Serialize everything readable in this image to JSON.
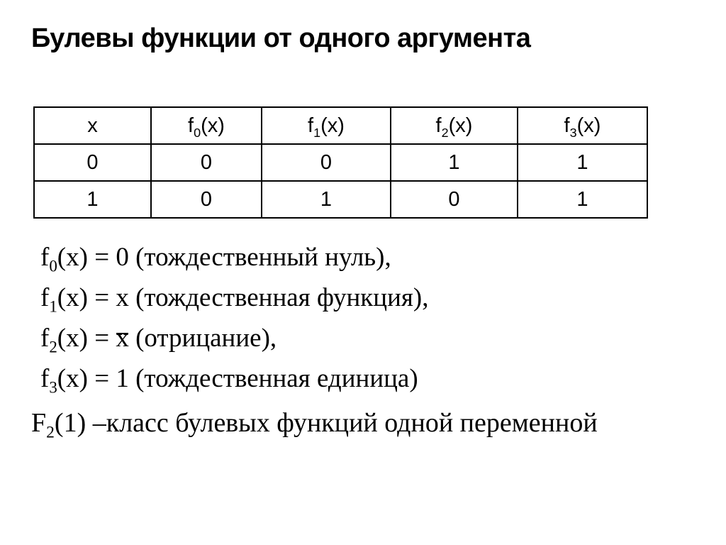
{
  "title": "Булевы функции от одного аргумента",
  "table": {
    "headers": [
      {
        "base": "x",
        "sub": "",
        "args": ""
      },
      {
        "base": "f",
        "sub": "0",
        "args": "(x)"
      },
      {
        "base": "f",
        "sub": "1",
        "args": "(x)"
      },
      {
        "base": "f",
        "sub": "2",
        "args": "(x)"
      },
      {
        "base": "f",
        "sub": "3",
        "args": "(x)"
      }
    ],
    "rows": [
      [
        "0",
        "0",
        "0",
        "1",
        "1"
      ],
      [
        "1",
        "0",
        "1",
        "0",
        "1"
      ]
    ]
  },
  "definitions": [
    {
      "base": "f",
      "sub": "0",
      "args": "(x)",
      "eq": " = ",
      "value": "0",
      "overline": false,
      "note": " (тождественный нуль),"
    },
    {
      "base": "f",
      "sub": "1",
      "args": "(x)",
      "eq": " = ",
      "value": "x",
      "overline": false,
      "note": " (тождественная функция),"
    },
    {
      "base": "f",
      "sub": "2",
      "args": "(x)",
      "eq": " = ",
      "value": "x",
      "overline": true,
      "note": " (отрицание),"
    },
    {
      "base": "f",
      "sub": "3",
      "args": "(x)",
      "eq": " = ",
      "value": "1",
      "overline": false,
      "note": " (тождественная единица)"
    }
  ],
  "footer": {
    "base": "F",
    "sub": "2",
    "args": "(1)",
    "note": " –класс булевых функций одной переменной"
  },
  "colors": {
    "background": "#ffffff",
    "text": "#000000",
    "table_border": "#000000"
  }
}
